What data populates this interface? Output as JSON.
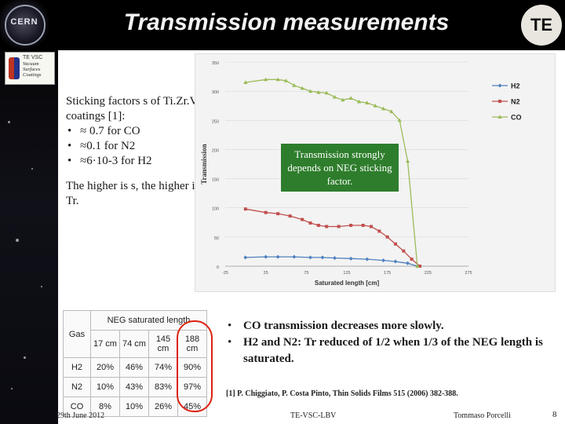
{
  "slide": {
    "title": "Transmission measurements",
    "te_logo": "TE",
    "cern_logo": "CERN",
    "vsc_logo": {
      "lines": [
        "Vacuum",
        "Surfaces",
        "Coatings"
      ]
    },
    "left_text": {
      "line1": "Sticking factors s of Ti.Zr.V coatings [1]:",
      "bullets": [
        "≈ 0.7 for CO",
        "≈0.1 for N2",
        "≈6·10-3 for H2"
      ],
      "line2": "The higher is s, the higher is Tr."
    },
    "callout": "Transmission strongly depends on NEG sticking factor.",
    "right_bullets": [
      "CO transmission decreases more slowly.",
      "H2 and N2: Tr reduced of 1/2 when 1/3 of the NEG length is saturated."
    ],
    "reference": "[1] P. Chiggiato, P. Costa Pinto, Thin Solids Films 515 (2006) 382-388.",
    "footer": {
      "date": "29th June 2012",
      "center": "TE-VSC-LBV",
      "author": "Tommaso Porcelli",
      "page": "8"
    }
  },
  "table": {
    "group_header": "NEG saturated length",
    "row_header": "Gas",
    "columns": [
      "17 cm",
      "74 cm",
      "145 cm",
      "188 cm"
    ],
    "rows": [
      {
        "gas": "H2",
        "values": [
          "20%",
          "46%",
          "74%",
          "90%"
        ]
      },
      {
        "gas": "N2",
        "values": [
          "10%",
          "43%",
          "83%",
          "97%"
        ]
      },
      {
        "gas": "CO",
        "values": [
          "8%",
          "10%",
          "26%",
          "45%"
        ]
      }
    ]
  },
  "chart_data": {
    "type": "line",
    "xlabel": "Saturated length [cm]",
    "ylabel": "Transmission",
    "xlim": [
      -25,
      275
    ],
    "ylim": [
      0,
      350
    ],
    "xticks": [
      "-25",
      "0",
      "25",
      "50",
      "75",
      "100",
      "125",
      "150",
      "175",
      "200",
      "225",
      "250",
      "275"
    ],
    "yticks": [
      "0",
      "50",
      "100",
      "150",
      "200",
      "250",
      "300",
      "350"
    ],
    "legend_position": "top-right",
    "series": [
      {
        "name": "H2",
        "color": "#4f81bd",
        "marker": "diamond",
        "x": [
          0,
          25,
          40,
          60,
          80,
          95,
          110,
          130,
          150,
          170,
          185,
          200,
          212
        ],
        "y": [
          15,
          16,
          16,
          16,
          15,
          15,
          14,
          13,
          12,
          10,
          8,
          5,
          0
        ]
      },
      {
        "name": "N2",
        "color": "#c0504d",
        "marker": "square",
        "x": [
          0,
          25,
          40,
          55,
          70,
          80,
          90,
          100,
          115,
          130,
          145,
          155,
          165,
          175,
          185,
          195,
          205,
          215
        ],
        "y": [
          98,
          92,
          90,
          86,
          80,
          74,
          70,
          68,
          68,
          70,
          70,
          68,
          60,
          50,
          38,
          26,
          12,
          0
        ]
      },
      {
        "name": "CO",
        "color": "#9bbb59",
        "marker": "triangle",
        "x": [
          0,
          25,
          40,
          50,
          60,
          70,
          80,
          90,
          100,
          110,
          120,
          130,
          140,
          150,
          160,
          170,
          180,
          190,
          200,
          212
        ],
        "y": [
          315,
          320,
          320,
          318,
          310,
          305,
          300,
          298,
          297,
          290,
          285,
          288,
          282,
          280,
          275,
          270,
          265,
          250,
          180,
          0
        ]
      }
    ]
  }
}
